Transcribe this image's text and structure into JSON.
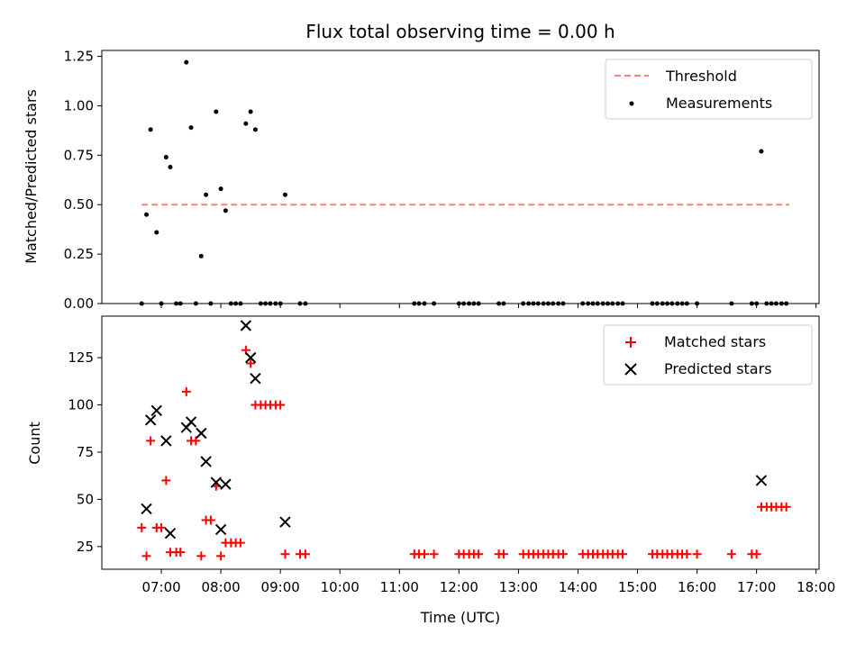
{
  "chart_data": [
    {
      "type": "scatter",
      "title": "Flux total observing time = 0.00 h",
      "xlabel": "",
      "ylabel": "Matched/Predicted stars",
      "ylim": [
        0,
        1.28
      ],
      "xlim_hours": [
        6.0,
        18.05
      ],
      "yticks": [
        "0.00",
        "0.25",
        "0.50",
        "0.75",
        "1.00",
        "1.25"
      ],
      "ytick_values": [
        0,
        0.25,
        0.5,
        0.75,
        1.0,
        1.25
      ],
      "legend_placement": "top-right",
      "threshold": {
        "name": "Threshold",
        "value": 0.5,
        "x_start": 6.67,
        "x_end": 17.55,
        "color": "#ff7f7f"
      },
      "series": [
        {
          "name": "Measurements",
          "color": "#000000",
          "x": [
            6.67,
            6.75,
            6.82,
            6.92,
            7.0,
            7.08,
            7.15,
            7.25,
            7.32,
            7.42,
            7.5,
            7.58,
            7.67,
            7.75,
            7.83,
            7.92,
            8.0,
            8.08,
            8.17,
            8.25,
            8.33,
            8.42,
            8.5,
            8.58,
            8.67,
            8.75,
            8.83,
            8.92,
            9.0,
            9.08,
            9.33,
            9.42,
            11.25,
            11.33,
            11.42,
            11.58,
            12.0,
            12.08,
            12.17,
            12.25,
            12.33,
            12.67,
            12.75,
            13.08,
            13.17,
            13.25,
            13.33,
            13.42,
            13.5,
            13.58,
            13.67,
            13.75,
            14.08,
            14.17,
            14.25,
            14.33,
            14.42,
            14.5,
            14.58,
            14.67,
            14.75,
            15.25,
            15.33,
            15.42,
            15.5,
            15.58,
            15.67,
            15.75,
            15.83,
            16.0,
            16.58,
            16.92,
            17.0,
            17.08,
            17.17,
            17.25,
            17.33,
            17.42,
            17.5
          ],
          "y": [
            0,
            0.45,
            0.88,
            0.36,
            0,
            0.74,
            0.69,
            0,
            0,
            1.22,
            0.89,
            0,
            0.24,
            0.55,
            0,
            0.97,
            0.58,
            0.47,
            0,
            0,
            0,
            0.91,
            0.97,
            0.88,
            0,
            0,
            0,
            0,
            0,
            0.55,
            0,
            0,
            0,
            0,
            0,
            0,
            0,
            0,
            0,
            0,
            0,
            0,
            0,
            0,
            0,
            0,
            0,
            0,
            0,
            0,
            0,
            0,
            0,
            0,
            0,
            0,
            0,
            0,
            0,
            0,
            0,
            0,
            0,
            0,
            0,
            0,
            0,
            0,
            0,
            0,
            0,
            0,
            0,
            0.77,
            0,
            0,
            0,
            0,
            0
          ]
        }
      ]
    },
    {
      "type": "scatter",
      "title": "",
      "xlabel": "Time (UTC)",
      "ylabel": "Count",
      "ylim": [
        13,
        147
      ],
      "xlim_hours": [
        6.0,
        18.05
      ],
      "yticks": [
        "25",
        "50",
        "75",
        "100",
        "125"
      ],
      "ytick_values": [
        25,
        50,
        75,
        100,
        125
      ],
      "xticks": [
        "07:00",
        "08:00",
        "09:00",
        "10:00",
        "11:00",
        "12:00",
        "13:00",
        "14:00",
        "15:00",
        "16:00",
        "17:00",
        "18:00"
      ],
      "xtick_values": [
        7,
        8,
        9,
        10,
        11,
        12,
        13,
        14,
        15,
        16,
        17,
        18
      ],
      "legend_placement": "top-right",
      "series": [
        {
          "name": "Matched stars",
          "marker": "plus",
          "color": "#ff0000",
          "x": [
            6.67,
            6.75,
            6.82,
            6.92,
            7.0,
            7.08,
            7.15,
            7.25,
            7.32,
            7.42,
            7.5,
            7.58,
            7.67,
            7.75,
            7.83,
            7.92,
            8.0,
            8.08,
            8.17,
            8.25,
            8.33,
            8.42,
            8.5,
            8.58,
            8.67,
            8.75,
            8.83,
            8.92,
            9.0,
            9.08,
            9.33,
            9.42,
            11.25,
            11.33,
            11.42,
            11.58,
            12.0,
            12.08,
            12.17,
            12.25,
            12.33,
            12.67,
            12.75,
            13.08,
            13.17,
            13.25,
            13.33,
            13.42,
            13.5,
            13.58,
            13.67,
            13.75,
            14.08,
            14.17,
            14.25,
            14.33,
            14.42,
            14.5,
            14.58,
            14.67,
            14.75,
            15.25,
            15.33,
            15.42,
            15.5,
            15.58,
            15.67,
            15.75,
            15.83,
            16.0,
            16.58,
            16.92,
            17.0,
            17.08,
            17.17,
            17.25,
            17.33,
            17.42,
            17.5
          ],
          "y": [
            35,
            20,
            81,
            35,
            35,
            60,
            22,
            22,
            22,
            107,
            81,
            81,
            20,
            39,
            39,
            57,
            20,
            27,
            27,
            27,
            27,
            129,
            122,
            100,
            100,
            100,
            100,
            100,
            100,
            21,
            21,
            21,
            21,
            21,
            21,
            21,
            21,
            21,
            21,
            21,
            21,
            21,
            21,
            21,
            21,
            21,
            21,
            21,
            21,
            21,
            21,
            21,
            21,
            21,
            21,
            21,
            21,
            21,
            21,
            21,
            21,
            21,
            21,
            21,
            21,
            21,
            21,
            21,
            21,
            21,
            21,
            21,
            21,
            46,
            46,
            46,
            46,
            46,
            46
          ]
        },
        {
          "name": "Predicted stars",
          "marker": "x",
          "color": "#000000",
          "x": [
            6.75,
            6.82,
            6.92,
            7.08,
            7.15,
            7.42,
            7.5,
            7.67,
            7.75,
            7.92,
            8.0,
            8.08,
            8.42,
            8.5,
            8.58,
            9.08,
            17.08
          ],
          "y": [
            45,
            92,
            97,
            81,
            32,
            88,
            91,
            85,
            70,
            59,
            34,
            58,
            142,
            125,
            114,
            38,
            60
          ]
        }
      ]
    }
  ]
}
